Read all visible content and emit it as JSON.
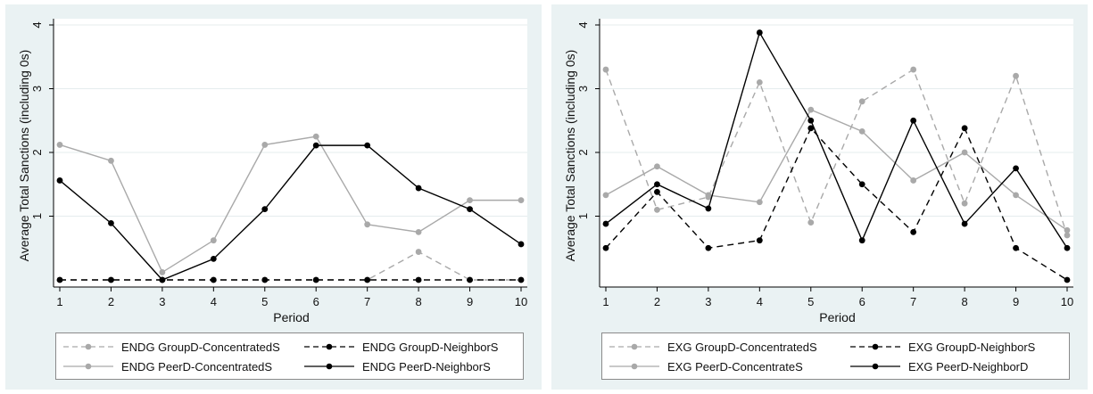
{
  "chart_data": [
    {
      "type": "line",
      "title": "",
      "xlabel": "Period",
      "ylabel": "Average Total Sanctions (including 0s)",
      "x": [
        1,
        2,
        3,
        4,
        5,
        6,
        7,
        8,
        9,
        10
      ],
      "xlim": [
        1,
        10
      ],
      "ylim": [
        0,
        4
      ],
      "yticks": [
        1,
        2,
        3,
        4
      ],
      "grid": true,
      "legend_position": "bottom",
      "series": [
        {
          "name": "ENDG GroupD-ConcentratedS",
          "color": "#a9a9a9",
          "dash": "dashed",
          "values": [
            0,
            0,
            0,
            0,
            0,
            0,
            0,
            0.44,
            0,
            0
          ]
        },
        {
          "name": "ENDG GroupD-NeighborS",
          "color": "#000000",
          "dash": "dashed",
          "values": [
            0,
            0,
            0,
            0,
            0,
            0,
            0,
            0,
            0,
            0
          ]
        },
        {
          "name": "ENDG PeerD-ConcentratedS",
          "color": "#a9a9a9",
          "dash": "solid",
          "values": [
            2.12,
            1.87,
            0.12,
            0.62,
            2.12,
            2.25,
            0.87,
            0.75,
            1.25,
            1.25
          ]
        },
        {
          "name": "ENDG PeerD-NeighborS",
          "color": "#000000",
          "dash": "solid",
          "values": [
            1.56,
            0.89,
            0,
            0.33,
            1.11,
            2.11,
            2.11,
            1.44,
            1.11,
            0.56
          ]
        }
      ]
    },
    {
      "type": "line",
      "title": "",
      "xlabel": "Period",
      "ylabel": "Average Total Sanctions (including 0s)",
      "x": [
        1,
        2,
        3,
        4,
        5,
        6,
        7,
        8,
        9,
        10
      ],
      "xlim": [
        1,
        10
      ],
      "ylim": [
        0,
        4
      ],
      "yticks": [
        1,
        2,
        3,
        4
      ],
      "grid": true,
      "legend_position": "bottom",
      "series": [
        {
          "name": "EXG GroupD-ConcentratedS",
          "color": "#a9a9a9",
          "dash": "dashed",
          "values": [
            3.3,
            1.1,
            1.3,
            3.1,
            0.9,
            2.8,
            3.3,
            1.2,
            3.2,
            0.7
          ]
        },
        {
          "name": "EXG GroupD-NeighborS",
          "color": "#000000",
          "dash": "dashed",
          "values": [
            0.5,
            1.38,
            0.5,
            0.62,
            2.38,
            1.5,
            0.75,
            2.38,
            0.5,
            0
          ]
        },
        {
          "name": "EXG PeerD-ConcentrateS",
          "color": "#a9a9a9",
          "dash": "solid",
          "values": [
            1.33,
            1.78,
            1.33,
            1.22,
            2.67,
            2.33,
            1.56,
            2.0,
            1.33,
            0.78
          ]
        },
        {
          "name": "EXG PeerD-NeighborD",
          "color": "#000000",
          "dash": "solid",
          "values": [
            0.88,
            1.5,
            1.12,
            3.88,
            2.5,
            0.62,
            2.5,
            0.88,
            1.75,
            0.5
          ]
        }
      ]
    }
  ]
}
